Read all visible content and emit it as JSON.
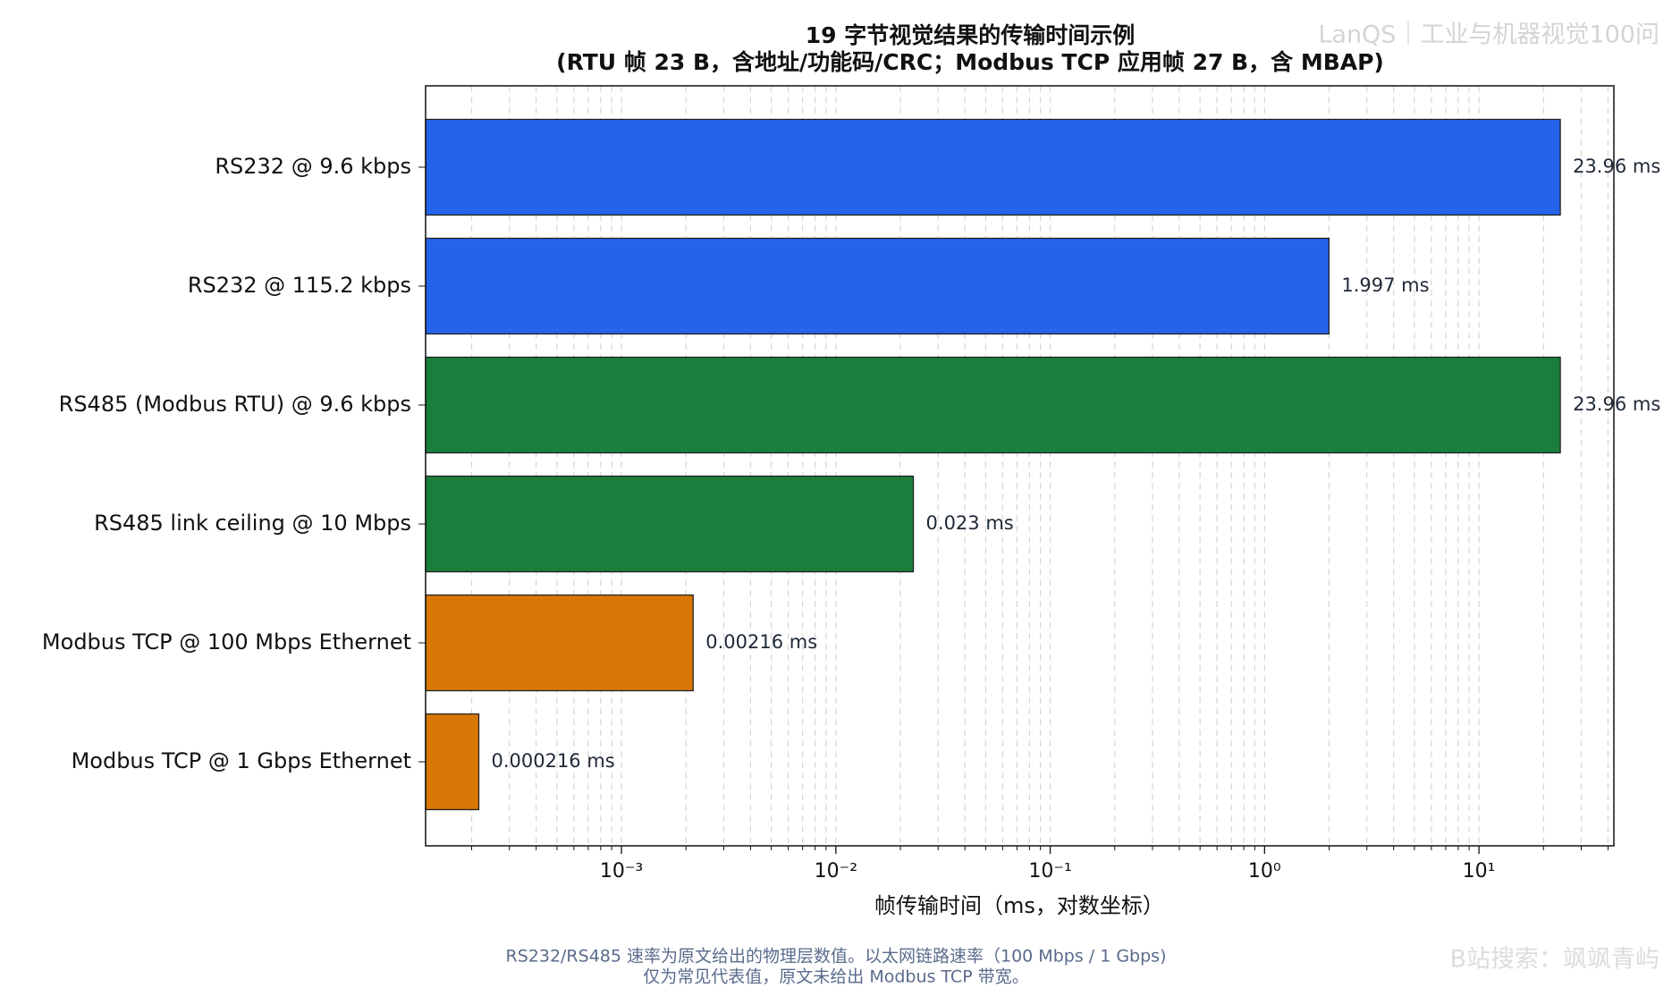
{
  "chart_data": {
    "type": "barh",
    "title": [
      "19 字节视觉结果的传输时间示例",
      "(RTU 帧 23 B，含地址/功能码/CRC；Modbus TCP 应用帧 27 B，含 MBAP)"
    ],
    "categories": [
      "RS232 @ 9.6 kbps",
      "RS232 @ 115.2 kbps",
      "RS485 (Modbus RTU) @ 9.6 kbps",
      "RS485 link ceiling @ 10 Mbps",
      "Modbus TCP @ 100 Mbps Ethernet",
      "Modbus TCP @ 1 Gbps Ethernet"
    ],
    "values": [
      23.96,
      1.997,
      23.96,
      0.023,
      0.00216,
      0.000216
    ],
    "value_labels": [
      "23.96 ms",
      "1.997 ms",
      "23.96 ms",
      "0.023 ms",
      "0.00216 ms",
      "0.000216 ms"
    ],
    "colors": [
      "#2563eb",
      "#2563eb",
      "#1a7f3c",
      "#1a7f3c",
      "#d97706",
      "#d97706"
    ],
    "xlabel": "帧传输时间（ms，对数坐标）",
    "xscale": "log",
    "xlim": [
      0.000122,
      42.6
    ],
    "xticks": [
      {
        "value": 0.001,
        "label": "10⁻³"
      },
      {
        "value": 0.01,
        "label": "10⁻²"
      },
      {
        "value": 0.1,
        "label": "10⁻¹"
      },
      {
        "value": 1,
        "label": "10⁰"
      },
      {
        "value": 10,
        "label": "10¹"
      }
    ],
    "xminorticks": [
      0.0002,
      0.0003,
      0.0004,
      0.0005,
      0.0006,
      0.0007,
      0.0008,
      0.0009,
      0.002,
      0.003,
      0.004,
      0.005,
      0.006,
      0.007,
      0.008,
      0.009,
      0.02,
      0.03,
      0.04,
      0.05,
      0.06,
      0.07,
      0.08,
      0.09,
      0.2,
      0.3,
      0.4,
      0.5,
      0.6,
      0.7,
      0.8,
      0.9,
      2,
      3,
      4,
      5,
      6,
      7,
      8,
      9,
      20,
      30,
      40
    ],
    "grid": true,
    "footnote": [
      "RS232/RS485 速率为原文给出的物理层数值。以太网链路速率（100 Mbps / 1 Gbps)",
      "仅为常见代表值，原文未给出 Modbus TCP 带宽。"
    ],
    "watermarks": [
      "LanQS｜工业与机器视觉100问",
      "B站搜索：飒飒青屿"
    ]
  }
}
